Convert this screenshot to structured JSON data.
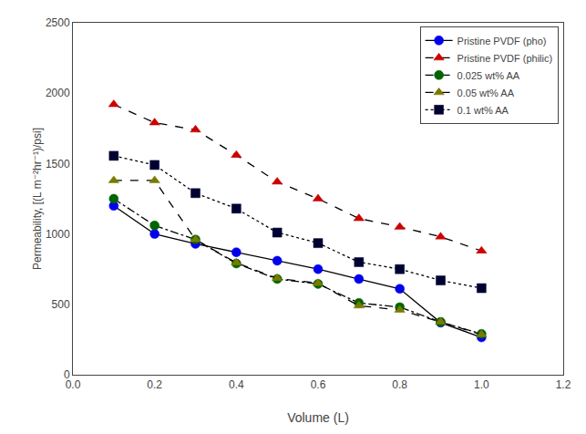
{
  "chart_data": {
    "type": "line",
    "x": [
      0.1,
      0.2,
      0.3,
      0.4,
      0.5,
      0.6,
      0.7,
      0.8,
      0.9,
      1.0
    ],
    "series": [
      {
        "name": "Pristine PVDF (pho)",
        "color": "#0000ee",
        "marker": "circle",
        "line_style": "solid",
        "values": [
          1200,
          1000,
          930,
          870,
          810,
          750,
          680,
          610,
          370,
          265
        ]
      },
      {
        "name": "Pristine PVDF (philic)",
        "color": "#cc0000",
        "marker": "triangle-up",
        "line_style": "dash",
        "values": [
          1920,
          1790,
          1740,
          1560,
          1370,
          1250,
          1110,
          1050,
          980,
          880
        ]
      },
      {
        "name": "0.025 wt% AA",
        "color": "#006400",
        "marker": "circle",
        "line_style": "dashdot",
        "values": [
          1250,
          1060,
          960,
          790,
          680,
          645,
          510,
          480,
          375,
          290
        ]
      },
      {
        "name": "0.05 wt% AA",
        "color": "#7a7a00",
        "marker": "triangle-up",
        "line_style": "dash",
        "values": [
          1380,
          1380,
          960,
          795,
          685,
          650,
          490,
          460,
          375,
          285
        ]
      },
      {
        "name": "0.1 wt% AA",
        "color": "#000033",
        "marker": "square",
        "line_style": "dot",
        "values": [
          1555,
          1490,
          1290,
          1180,
          1010,
          935,
          800,
          750,
          670,
          615
        ]
      }
    ],
    "x_label": "Volume (L)",
    "y_label": "Permeability, [(L m⁻²hr⁻¹)/psi]",
    "xlim": [
      0.0,
      1.2
    ],
    "ylim": [
      0,
      2500
    ],
    "xticks": [
      {
        "value": 0.0,
        "label": "0.0"
      },
      0.2,
      0.4,
      0.6,
      0.8,
      {
        "value": 1.0,
        "label": "1.0"
      },
      1.2
    ],
    "yticks": [
      0,
      500,
      1000,
      1500,
      2000,
      2500
    ],
    "grid": false,
    "legend": "upper right"
  }
}
